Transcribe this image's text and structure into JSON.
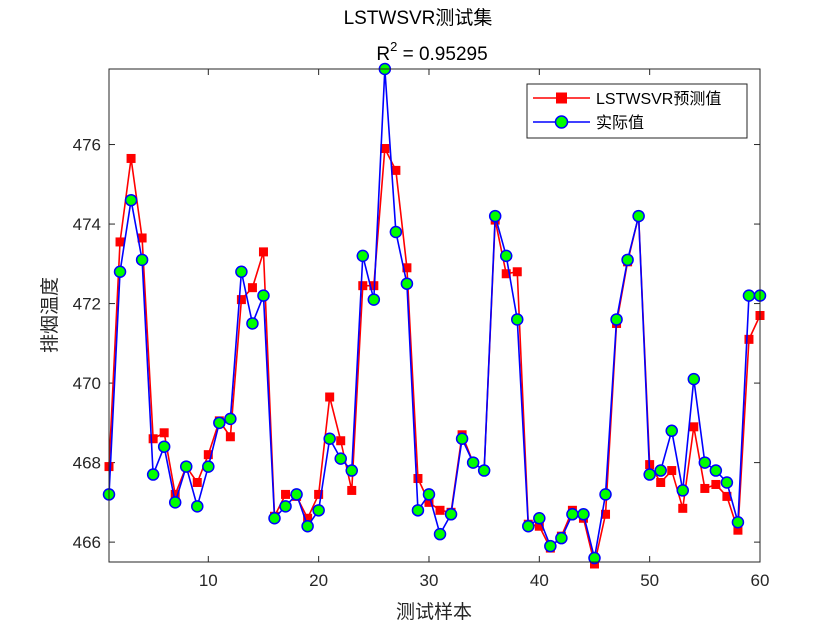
{
  "chart_data": {
    "type": "line",
    "title": "LSTWSVR测试集",
    "subtitle_prefix": "R",
    "subtitle_sup": "2",
    "subtitle_value": " = 0.95295",
    "xlabel": "测试样本",
    "ylabel": "排烟温度",
    "xlim": [
      1,
      60
    ],
    "ylim": [
      465.5,
      477.9
    ],
    "xticks": [
      10,
      20,
      30,
      40,
      50,
      60
    ],
    "yticks": [
      466,
      468,
      470,
      472,
      474,
      476
    ],
    "grid": false,
    "legend_position": "top-right",
    "x": [
      1,
      2,
      3,
      4,
      5,
      6,
      7,
      8,
      9,
      10,
      11,
      12,
      13,
      14,
      15,
      16,
      17,
      18,
      19,
      20,
      21,
      22,
      23,
      24,
      25,
      26,
      27,
      28,
      29,
      30,
      31,
      32,
      33,
      34,
      35,
      36,
      37,
      38,
      39,
      40,
      41,
      42,
      43,
      44,
      45,
      46,
      47,
      48,
      49,
      50,
      51,
      52,
      53,
      54,
      55,
      56,
      57,
      58,
      59,
      60
    ],
    "series": [
      {
        "name": "LSTWSVR预测值",
        "color": "#ff0000",
        "marker": "square",
        "values": [
          467.9,
          473.55,
          475.65,
          473.65,
          468.6,
          468.75,
          467.2,
          467.9,
          467.5,
          468.2,
          469.05,
          468.65,
          472.1,
          472.4,
          473.3,
          466.65,
          467.2,
          467.15,
          466.6,
          467.2,
          469.65,
          468.55,
          467.3,
          472.45,
          472.45,
          475.9,
          475.35,
          472.9,
          467.6,
          467.0,
          466.8,
          466.75,
          468.7,
          468.0,
          467.8,
          474.1,
          472.75,
          472.8,
          466.45,
          466.4,
          465.85,
          466.15,
          466.8,
          466.6,
          465.45,
          466.7,
          471.5,
          473.05,
          474.2,
          467.95,
          467.5,
          467.8,
          466.85,
          468.9,
          467.35,
          467.45,
          467.15,
          466.3,
          471.1,
          471.7
        ]
      },
      {
        "name": "实际值",
        "color": "#0000ff",
        "marker_face": "#00ff00",
        "marker": "circle",
        "values": [
          467.2,
          472.8,
          474.6,
          473.1,
          467.7,
          468.4,
          467.0,
          467.9,
          466.9,
          467.9,
          469.0,
          469.1,
          472.8,
          471.5,
          472.2,
          466.6,
          466.9,
          467.2,
          466.4,
          466.8,
          468.6,
          468.1,
          467.8,
          473.2,
          472.1,
          477.9,
          473.8,
          472.5,
          466.8,
          467.2,
          466.2,
          466.7,
          468.6,
          468.0,
          467.8,
          474.2,
          473.2,
          471.6,
          466.4,
          466.6,
          465.9,
          466.1,
          466.7,
          466.7,
          465.6,
          467.2,
          471.6,
          473.1,
          474.2,
          467.7,
          467.8,
          468.8,
          467.3,
          470.1,
          468.0,
          467.8,
          467.5,
          466.5,
          472.2,
          472.2
        ]
      }
    ]
  }
}
